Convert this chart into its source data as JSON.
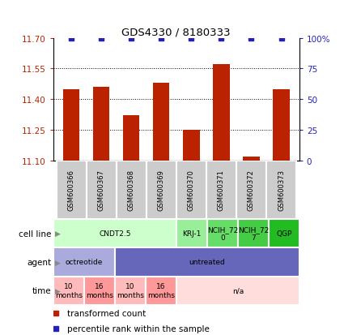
{
  "title": "GDS4330 / 8180333",
  "samples": [
    "GSM600366",
    "GSM600367",
    "GSM600368",
    "GSM600369",
    "GSM600370",
    "GSM600371",
    "GSM600372",
    "GSM600373"
  ],
  "bar_values": [
    11.45,
    11.46,
    11.32,
    11.48,
    11.25,
    11.57,
    11.12,
    11.45
  ],
  "percentile_values": [
    100,
    100,
    100,
    100,
    100,
    100,
    100,
    100
  ],
  "ylim_left": [
    11.1,
    11.7
  ],
  "ylim_right": [
    0,
    100
  ],
  "yticks_left": [
    11.1,
    11.25,
    11.4,
    11.55,
    11.7
  ],
  "yticks_right": [
    0,
    25,
    50,
    75,
    100
  ],
  "bar_color": "#BB2200",
  "dot_color": "#2222BB",
  "cell_line_groups": [
    {
      "label": "CNDT2.5",
      "start": 0,
      "end": 4,
      "color": "#CCFFCC"
    },
    {
      "label": "KRJ-1",
      "start": 4,
      "end": 5,
      "color": "#99EE99"
    },
    {
      "label": "NCIH_72\n0",
      "start": 5,
      "end": 6,
      "color": "#66DD66"
    },
    {
      "label": "NCIH_72\n7",
      "start": 6,
      "end": 7,
      "color": "#44CC44"
    },
    {
      "label": "QGP",
      "start": 7,
      "end": 8,
      "color": "#22BB22"
    }
  ],
  "agent_groups": [
    {
      "label": "octreotide",
      "start": 0,
      "end": 2,
      "color": "#AAAADD"
    },
    {
      "label": "untreated",
      "start": 2,
      "end": 8,
      "color": "#6666BB"
    }
  ],
  "time_groups": [
    {
      "label": "10\nmonths",
      "start": 0,
      "end": 1,
      "color": "#FFBBBB"
    },
    {
      "label": "16\nmonths",
      "start": 1,
      "end": 2,
      "color": "#FF9999"
    },
    {
      "label": "10\nmonths",
      "start": 2,
      "end": 3,
      "color": "#FFBBBB"
    },
    {
      "label": "16\nmonths",
      "start": 3,
      "end": 4,
      "color": "#FF9999"
    },
    {
      "label": "n/a",
      "start": 4,
      "end": 8,
      "color": "#FFDDDD"
    }
  ],
  "legend_bar_label": "transformed count",
  "legend_dot_label": "percentile rank within the sample",
  "fig_width": 4.25,
  "fig_height": 4.14,
  "dpi": 100
}
